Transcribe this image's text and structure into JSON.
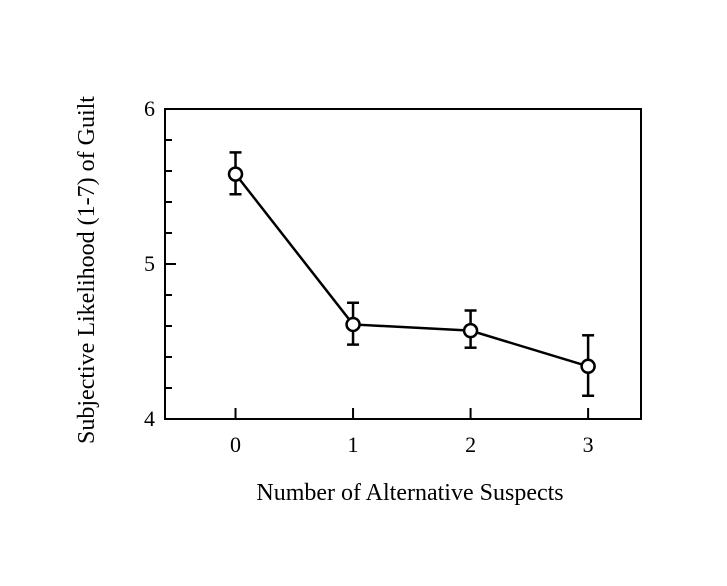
{
  "chart_data": {
    "type": "line",
    "title": "",
    "xlabel": "Number of Alternative Suspects",
    "ylabel": "Subjective Likelihood (1-7) of Guilt",
    "x": [
      0,
      1,
      2,
      3
    ],
    "x_tick_labels": [
      "0",
      "1",
      "2",
      "3"
    ],
    "y_tick_labels": [
      "4",
      "5",
      "6"
    ],
    "y_ticks": [
      4,
      5,
      6
    ],
    "ylim": [
      4,
      6
    ],
    "xlim": [
      -0.6,
      3.45
    ],
    "grid": false,
    "series": [
      {
        "values": [
          5.58,
          4.61,
          4.57,
          4.34
        ],
        "error_upper": [
          5.72,
          4.75,
          4.7,
          4.54
        ],
        "error_lower": [
          5.45,
          4.48,
          4.46,
          4.15
        ],
        "marker": "open-circle",
        "color": "#000000"
      }
    ]
  }
}
